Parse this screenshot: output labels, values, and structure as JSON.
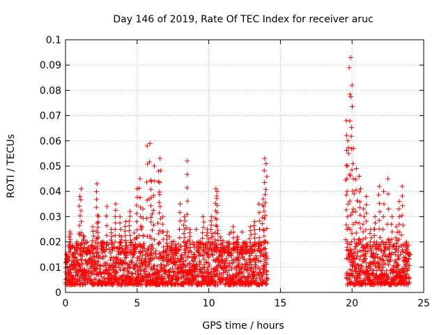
{
  "chart_data": {
    "type": "scatter",
    "title": "Day 146 of 2019, Rate Of TEC Index for receiver aruc",
    "xlabel": "GPS time / hours",
    "ylabel": "ROTI / TECUs",
    "xlim": [
      0,
      25
    ],
    "ylim": [
      0,
      0.1
    ],
    "xticks": [
      "0",
      "5",
      "10",
      "15",
      "20",
      "25"
    ],
    "yticks": [
      "0",
      "0.01",
      "0.02",
      "0.03",
      "0.04",
      "0.05",
      "0.06",
      "0.07",
      "0.08",
      "0.09",
      "0.1"
    ],
    "grid": true,
    "marker": "+",
    "color": "#ff0000",
    "coverage": [
      [
        0.0,
        14.1
      ],
      [
        19.6,
        24.0
      ]
    ],
    "baseline_range": [
      0.003,
      0.02
    ],
    "series": [
      {
        "name": "ROTI",
        "x": [
          0.1,
          0.3,
          0.5,
          0.8,
          1.0,
          1.1,
          1.3,
          1.6,
          1.9,
          2.2,
          2.3,
          2.6,
          2.9,
          3.2,
          3.5,
          3.8,
          3.9,
          4.2,
          4.5,
          4.8,
          5.0,
          5.2,
          5.4,
          5.7,
          5.9,
          6.0,
          6.2,
          6.5,
          6.6,
          6.8,
          7.1,
          7.4,
          7.7,
          8.0,
          8.3,
          8.5,
          8.7,
          9.0,
          9.3,
          9.6,
          9.9,
          10.2,
          10.5,
          10.6,
          10.8,
          11.1,
          11.4,
          11.7,
          12.0,
          12.3,
          12.6,
          12.9,
          13.2,
          13.5,
          13.8,
          13.9,
          14.0,
          19.6,
          19.7,
          19.8,
          19.9,
          20.0,
          20.1,
          20.3,
          20.5,
          20.6,
          20.8,
          21.0,
          21.3,
          21.6,
          21.9,
          22.2,
          22.5,
          22.8,
          23.1,
          23.3,
          23.5,
          23.8,
          24.0
        ],
        "y": [
          0.012,
          0.024,
          0.015,
          0.02,
          0.038,
          0.041,
          0.022,
          0.018,
          0.026,
          0.043,
          0.03,
          0.02,
          0.034,
          0.025,
          0.035,
          0.03,
          0.022,
          0.028,
          0.032,
          0.018,
          0.041,
          0.045,
          0.033,
          0.058,
          0.059,
          0.044,
          0.05,
          0.048,
          0.053,
          0.03,
          0.024,
          0.02,
          0.018,
          0.035,
          0.03,
          0.052,
          0.025,
          0.015,
          0.02,
          0.03,
          0.025,
          0.03,
          0.041,
          0.04,
          0.022,
          0.018,
          0.02,
          0.026,
          0.022,
          0.018,
          0.02,
          0.026,
          0.028,
          0.035,
          0.037,
          0.053,
          0.051,
          0.068,
          0.06,
          0.089,
          0.093,
          0.082,
          0.057,
          0.049,
          0.046,
          0.041,
          0.033,
          0.038,
          0.025,
          0.03,
          0.042,
          0.04,
          0.045,
          0.03,
          0.026,
          0.036,
          0.042,
          0.02,
          0.015
        ]
      }
    ]
  }
}
